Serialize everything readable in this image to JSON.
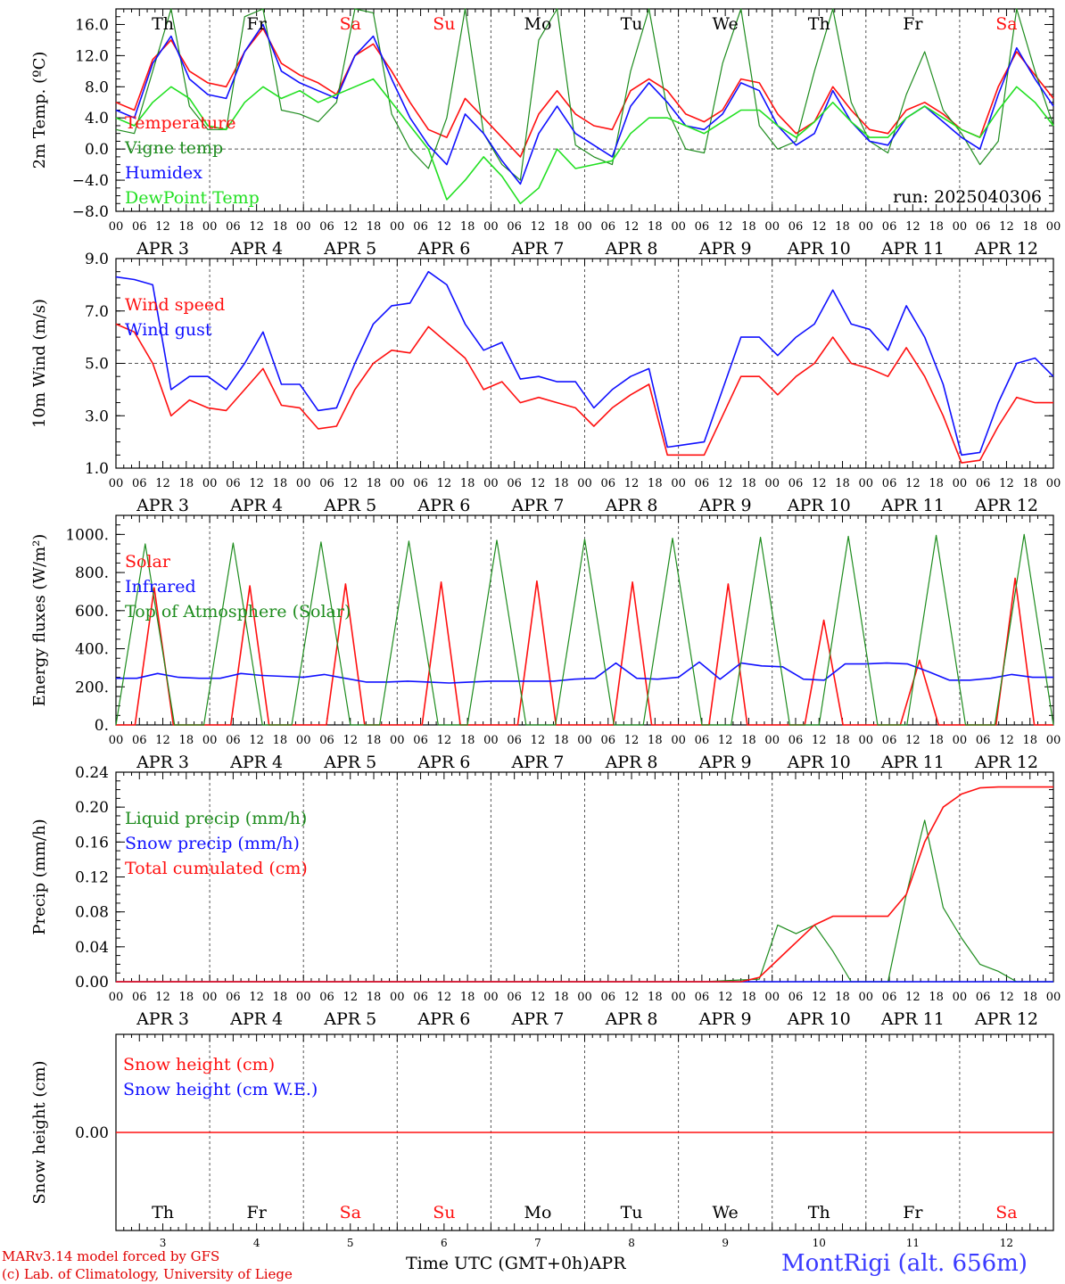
{
  "colors": {
    "red": "#ff1010",
    "green": "#1e8c1e",
    "blue": "#1010ff",
    "lightgreen": "#22e022",
    "grid": "#555555"
  },
  "days": [
    "Th",
    "Fr",
    "Sa",
    "Su",
    "Mo",
    "Tu",
    "We",
    "Th",
    "Fr",
    "Sa"
  ],
  "weekend": [
    false,
    false,
    true,
    true,
    false,
    false,
    false,
    false,
    false,
    true
  ],
  "dates": [
    "APR  3",
    "APR  4",
    "APR  5",
    "APR  6",
    "APR  7",
    "APR  8",
    "APR  9",
    "APR 10",
    "APR 11",
    "APR 12"
  ],
  "day_numbers": [
    "3",
    "4",
    "5",
    "6",
    "7",
    "8",
    "9",
    "10",
    "11",
    "12"
  ],
  "hour_labels": [
    "00",
    "06",
    "12",
    "18"
  ],
  "footer": {
    "credit_line1": "MARv3.14 model forced by GFS",
    "credit_line2": "(c) Lab. of Climatology, University of Liege",
    "x_title": "Time UTC (GMT+0h)APR",
    "station": "MontRigi (alt. 656m)"
  },
  "chart_data": [
    {
      "type": "line",
      "ylabel": "2m Temp. (ºC)",
      "ylim": [
        -8,
        18
      ],
      "yticks": [
        "16.0",
        "12.0",
        "8.0",
        "4.0",
        "0.0",
        "−4.0",
        "−8.0"
      ],
      "ytick_values": [
        16,
        12,
        8,
        4,
        0,
        -4,
        -8
      ],
      "hline": 0,
      "annotation": "run: 2025040306",
      "x_unit": "hours since APR 3 00 UTC, 6-hourly",
      "series": [
        {
          "name": "Temperature",
          "color": "red",
          "values": [
            6.0,
            5.0,
            11.5,
            14.0,
            10.0,
            8.5,
            8.0,
            12.5,
            15.5,
            11.0,
            9.5,
            8.5,
            7.0,
            12.0,
            13.5,
            10.0,
            6.0,
            2.5,
            1.5,
            6.5,
            4.0,
            1.5,
            -1.0,
            4.5,
            7.5,
            4.5,
            3.0,
            2.5,
            7.5,
            9.0,
            7.5,
            4.5,
            3.5,
            5.0,
            9.0,
            8.5,
            4.5,
            2.0,
            3.5,
            8.0,
            5.0,
            2.5,
            2.0,
            5.0,
            6.0,
            4.5,
            2.5,
            1.5,
            8.0,
            12.5,
            9.5,
            6.5
          ]
        },
        {
          "name": "Vigne temp",
          "color": "green",
          "values": [
            2.5,
            2.0,
            10.0,
            18.0,
            5.5,
            2.5,
            2.5,
            17.0,
            18.0,
            5.0,
            4.5,
            3.5,
            6.0,
            18.0,
            17.5,
            4.5,
            0.0,
            -2.5,
            4.0,
            18.0,
            2.0,
            -2.0,
            -4.0,
            14.0,
            18.0,
            0.5,
            -1.0,
            -2.0,
            10.0,
            18.0,
            5.0,
            0.0,
            -0.5,
            11.0,
            18.0,
            3.0,
            0.0,
            1.0,
            10.0,
            18.0,
            6.0,
            1.0,
            -0.5,
            7.0,
            12.5,
            5.0,
            2.0,
            -2.0,
            1.0,
            18.0,
            10.0,
            3.0
          ]
        },
        {
          "name": "Humidex",
          "color": "blue",
          "values": [
            5.0,
            4.0,
            11.0,
            14.5,
            9.0,
            7.0,
            6.5,
            12.5,
            16.0,
            10.0,
            8.5,
            7.5,
            6.5,
            12.0,
            14.5,
            9.0,
            4.0,
            0.5,
            -2.0,
            4.5,
            2.0,
            -1.5,
            -4.5,
            2.0,
            5.5,
            2.0,
            0.5,
            -1.0,
            5.5,
            8.5,
            6.0,
            3.0,
            2.5,
            4.5,
            8.5,
            7.5,
            3.0,
            0.5,
            2.0,
            7.5,
            3.5,
            1.0,
            0.5,
            4.0,
            5.5,
            3.5,
            1.5,
            0.0,
            7.0,
            13.0,
            9.0,
            5.5
          ]
        },
        {
          "name": "DewPoint Temp",
          "color": "lightgreen",
          "values": [
            4.0,
            3.0,
            6.0,
            8.0,
            6.5,
            3.0,
            2.5,
            6.0,
            8.0,
            6.5,
            7.5,
            6.0,
            7.0,
            8.0,
            9.0,
            6.0,
            3.0,
            0.0,
            -6.5,
            -4.0,
            -1.0,
            -3.5,
            -7.0,
            -5.0,
            0.0,
            -2.5,
            -2.0,
            -1.5,
            2.0,
            4.0,
            4.0,
            3.0,
            2.0,
            3.5,
            5.0,
            5.0,
            3.0,
            1.5,
            3.5,
            6.0,
            3.5,
            1.5,
            1.5,
            4.0,
            5.5,
            4.0,
            2.5,
            1.5,
            5.0,
            8.0,
            6.0,
            3.0
          ]
        }
      ]
    },
    {
      "type": "line",
      "ylabel": "10m Wind (m/s)",
      "ylim": [
        1,
        9
      ],
      "yticks": [
        "9.0",
        "7.0",
        "5.0",
        "3.0",
        "1.0"
      ],
      "ytick_values": [
        9,
        7,
        5,
        3,
        1
      ],
      "hline": 5,
      "series": [
        {
          "name": "Wind speed",
          "color": "red",
          "values": [
            6.5,
            6.2,
            5.0,
            3.0,
            3.6,
            3.3,
            3.2,
            4.0,
            4.8,
            3.4,
            3.3,
            2.5,
            2.6,
            4.0,
            5.0,
            5.5,
            5.4,
            6.4,
            5.8,
            5.2,
            4.0,
            4.3,
            3.5,
            3.7,
            3.5,
            3.3,
            2.6,
            3.3,
            3.8,
            4.2,
            1.5,
            1.5,
            1.5,
            3.0,
            4.5,
            4.5,
            3.8,
            4.5,
            5.0,
            6.0,
            5.0,
            4.8,
            4.5,
            5.6,
            4.5,
            3.0,
            1.2,
            1.3,
            2.6,
            3.7,
            3.5,
            3.5
          ]
        },
        {
          "name": "Wind gust",
          "color": "blue",
          "values": [
            8.3,
            8.2,
            8.0,
            4.0,
            4.5,
            4.5,
            4.0,
            5.0,
            6.2,
            4.2,
            4.2,
            3.2,
            3.3,
            5.0,
            6.5,
            7.2,
            7.3,
            8.5,
            8.0,
            6.5,
            5.5,
            5.8,
            4.4,
            4.5,
            4.3,
            4.3,
            3.3,
            4.0,
            4.5,
            4.8,
            1.8,
            1.9,
            2.0,
            4.0,
            6.0,
            6.0,
            5.3,
            6.0,
            6.5,
            7.8,
            6.5,
            6.3,
            5.5,
            7.2,
            6.0,
            4.2,
            1.5,
            1.6,
            3.5,
            5.0,
            5.2,
            4.5
          ]
        }
      ]
    },
    {
      "type": "line",
      "ylabel": "Energy fluxes (W/m²)",
      "ylim": [
        0,
        1100
      ],
      "yticks": [
        "1000.",
        "800.",
        "600.",
        "400.",
        "200.",
        "0."
      ],
      "ytick_values": [
        1000,
        800,
        600,
        400,
        200,
        0
      ],
      "series": [
        {
          "name": "Solar",
          "color": "red",
          "values": [
            0,
            0,
            720,
            0,
            0,
            0,
            0,
            730,
            0,
            0,
            0,
            0,
            740,
            0,
            0,
            0,
            0,
            750,
            0,
            0,
            0,
            0,
            755,
            0,
            0,
            0,
            0,
            750,
            0,
            0,
            0,
            0,
            740,
            0,
            0,
            0,
            0,
            550,
            0,
            0,
            0,
            0,
            340,
            0,
            0,
            0,
            0,
            770,
            0,
            0
          ]
        },
        {
          "name": "Infrared",
          "color": "blue",
          "values": [
            245,
            245,
            270,
            250,
            245,
            245,
            270,
            260,
            255,
            250,
            265,
            245,
            225,
            225,
            230,
            225,
            220,
            225,
            230,
            230,
            230,
            230,
            240,
            245,
            325,
            245,
            240,
            250,
            330,
            240,
            325,
            310,
            305,
            240,
            235,
            320,
            320,
            325,
            320,
            280,
            235,
            235,
            245,
            265,
            250,
            250
          ]
        },
        {
          "name": "Top of Atmosphere (Solar)",
          "color": "green",
          "values": [
            0,
            950,
            0,
            0,
            955,
            0,
            0,
            960,
            0,
            0,
            965,
            0,
            0,
            970,
            0,
            0,
            975,
            0,
            0,
            980,
            0,
            0,
            985,
            0,
            0,
            990,
            0,
            0,
            995,
            0,
            0,
            1000,
            0
          ]
        }
      ]
    },
    {
      "type": "line",
      "ylabel": "Precip (mm/h)",
      "ylim": [
        0,
        0.24
      ],
      "yticks": [
        "0.24",
        "0.20",
        "0.16",
        "0.12",
        "0.08",
        "0.04",
        "0.00"
      ],
      "ytick_values": [
        0.24,
        0.2,
        0.16,
        0.12,
        0.08,
        0.04,
        0.0
      ],
      "series": [
        {
          "name": "Liquid precip (mm/h)",
          "color": "green",
          "values": [
            0,
            0,
            0,
            0,
            0,
            0,
            0,
            0,
            0,
            0,
            0,
            0,
            0,
            0,
            0,
            0,
            0,
            0,
            0,
            0,
            0,
            0,
            0,
            0,
            0,
            0,
            0,
            0,
            0,
            0,
            0,
            0,
            0,
            0.001,
            0.002,
            0.003,
            0.065,
            0.055,
            0.065,
            0.035,
            0,
            0,
            0,
            0.1,
            0.185,
            0.085,
            0.05,
            0.02,
            0.012,
            0,
            0,
            0
          ]
        },
        {
          "name": "Snow precip (mm/h)",
          "color": "blue",
          "values": [
            0,
            0,
            0,
            0,
            0,
            0,
            0,
            0,
            0,
            0,
            0,
            0,
            0,
            0,
            0,
            0,
            0,
            0,
            0,
            0,
            0,
            0,
            0,
            0,
            0,
            0,
            0,
            0,
            0,
            0,
            0,
            0,
            0,
            0,
            0,
            0,
            0,
            0,
            0,
            0,
            0,
            0,
            0,
            0,
            0,
            0,
            0,
            0,
            0,
            0,
            0,
            0
          ]
        },
        {
          "name": "Total cumulated (cm)",
          "color": "red",
          "values": [
            0,
            0,
            0,
            0,
            0,
            0,
            0,
            0,
            0,
            0,
            0,
            0,
            0,
            0,
            0,
            0,
            0,
            0,
            0,
            0,
            0,
            0,
            0,
            0,
            0,
            0,
            0,
            0,
            0,
            0,
            0,
            0,
            0,
            0,
            0,
            0.005,
            0.025,
            0.045,
            0.065,
            0.075,
            0.075,
            0.075,
            0.075,
            0.1,
            0.16,
            0.2,
            0.215,
            0.222,
            0.223,
            0.223,
            0.223,
            0.223
          ]
        }
      ]
    },
    {
      "type": "line",
      "ylabel": "Snow height (cm)",
      "ylim": [
        -1,
        1
      ],
      "yticks": [
        "0.00"
      ],
      "ytick_values": [
        0
      ],
      "series": [
        {
          "name": "Snow height (cm)",
          "color": "red",
          "values": [
            0,
            0,
            0,
            0,
            0,
            0,
            0,
            0,
            0,
            0,
            0,
            0,
            0,
            0,
            0,
            0,
            0,
            0,
            0,
            0,
            0,
            0,
            0,
            0,
            0,
            0,
            0,
            0,
            0,
            0,
            0,
            0,
            0,
            0,
            0,
            0,
            0,
            0,
            0,
            0,
            0,
            0,
            0,
            0,
            0,
            0,
            0,
            0,
            0,
            0,
            0,
            0
          ]
        },
        {
          "name": "Snow height (cm W.E.)",
          "color": "blue",
          "values": []
        }
      ]
    }
  ]
}
